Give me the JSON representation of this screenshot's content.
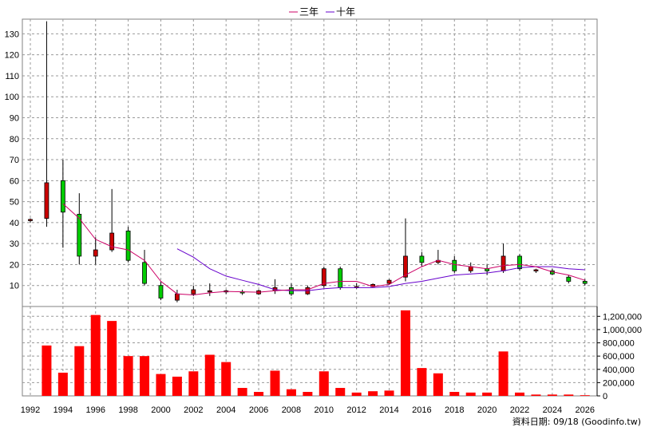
{
  "legend": [
    {
      "label": "三年",
      "color": "#cc0066"
    },
    {
      "label": "十年",
      "color": "#6600cc"
    }
  ],
  "footer": "資料日期: 09/18 (Goodinfo.tw)",
  "colors": {
    "up": "#cc0000",
    "down": "#00cc00",
    "volume": "#ff0000",
    "grid": "#999999"
  },
  "chart_data": {
    "type": "candlestick+bar",
    "x_ticks": [
      "1992",
      "1994",
      "1996",
      "1998",
      "2000",
      "2002",
      "2004",
      "2006",
      "2008",
      "2010",
      "2012",
      "2014",
      "2016",
      "2018",
      "2020",
      "2022",
      "2024",
      "2026"
    ],
    "price_axis": {
      "range": [
        0,
        137
      ],
      "ticks": [
        10,
        20,
        30,
        40,
        50,
        60,
        70,
        80,
        90,
        100,
        110,
        120,
        130
      ]
    },
    "volume_axis": {
      "range": [
        0,
        1300000
      ],
      "ticks": [
        "0",
        "200,000",
        "400,000",
        "600,000",
        "800,000",
        "1,000,000",
        "1,200,000"
      ],
      "tick_values": [
        0,
        200000,
        400000,
        600000,
        800000,
        1000000,
        1200000
      ]
    },
    "candles": [
      {
        "year": 1992,
        "open": 41,
        "close": 41.5,
        "high": 42,
        "low": 40
      },
      {
        "year": 1993,
        "open": 42,
        "close": 59,
        "high": 136,
        "low": 38
      },
      {
        "year": 1994,
        "open": 60,
        "close": 45,
        "high": 70,
        "low": 28
      },
      {
        "year": 1995,
        "open": 44,
        "close": 24,
        "high": 54,
        "low": 20
      },
      {
        "year": 1996,
        "open": 24,
        "close": 27,
        "high": 33,
        "low": 20
      },
      {
        "year": 1997,
        "open": 27,
        "close": 35,
        "high": 56,
        "low": 26
      },
      {
        "year": 1998,
        "open": 36,
        "close": 22,
        "high": 38,
        "low": 21
      },
      {
        "year": 1999,
        "open": 21,
        "close": 11,
        "high": 27,
        "low": 10
      },
      {
        "year": 2000,
        "open": 10,
        "close": 4,
        "high": 12,
        "low": 3
      },
      {
        "year": 2001,
        "open": 3,
        "close": 6,
        "high": 8,
        "low": 2
      },
      {
        "year": 2002,
        "open": 6,
        "close": 8,
        "high": 10,
        "low": 5
      },
      {
        "year": 2003,
        "open": 7,
        "close": 7.5,
        "high": 11,
        "low": 5
      },
      {
        "year": 2004,
        "open": 7,
        "close": 7.5,
        "high": 8,
        "low": 6
      },
      {
        "year": 2005,
        "open": 7,
        "close": 6.5,
        "high": 8,
        "low": 5.5
      },
      {
        "year": 2006,
        "open": 6,
        "close": 7.5,
        "high": 8,
        "low": 5.5
      },
      {
        "year": 2007,
        "open": 7.5,
        "close": 9,
        "high": 13,
        "low": 6
      },
      {
        "year": 2008,
        "open": 9,
        "close": 6,
        "high": 11,
        "low": 5
      },
      {
        "year": 2009,
        "open": 6,
        "close": 9,
        "high": 10,
        "low": 5.5
      },
      {
        "year": 2010,
        "open": 10,
        "close": 18,
        "high": 19,
        "low": 9
      },
      {
        "year": 2011,
        "open": 18,
        "close": 9,
        "high": 19,
        "low": 8
      },
      {
        "year": 2012,
        "open": 9,
        "close": 9.5,
        "high": 11,
        "low": 8.5
      },
      {
        "year": 2013,
        "open": 9.5,
        "close": 10.5,
        "high": 11,
        "low": 9
      },
      {
        "year": 2014,
        "open": 11,
        "close": 12.5,
        "high": 13,
        "low": 10.5
      },
      {
        "year": 2015,
        "open": 14,
        "close": 24,
        "high": 42,
        "low": 12
      },
      {
        "year": 2016,
        "open": 24,
        "close": 21,
        "high": 26,
        "low": 19
      },
      {
        "year": 2017,
        "open": 21,
        "close": 22,
        "high": 27,
        "low": 20
      },
      {
        "year": 2018,
        "open": 22,
        "close": 17,
        "high": 24,
        "low": 16
      },
      {
        "year": 2019,
        "open": 17,
        "close": 19,
        "high": 21,
        "low": 16
      },
      {
        "year": 2020,
        "open": 18,
        "close": 17,
        "high": 20,
        "low": 15
      },
      {
        "year": 2021,
        "open": 17,
        "close": 24,
        "high": 30,
        "low": 16
      },
      {
        "year": 2022,
        "open": 24,
        "close": 18,
        "high": 25,
        "low": 17
      },
      {
        "year": 2023,
        "open": 17,
        "close": 17.5,
        "high": 18,
        "low": 16
      },
      {
        "year": 2024,
        "open": 17,
        "close": 15.5,
        "high": 18,
        "low": 15
      },
      {
        "year": 2025,
        "open": 14,
        "close": 12,
        "high": 15,
        "low": 11
      },
      {
        "year": 2026,
        "open": 12,
        "close": 11,
        "high": 13,
        "low": 10
      }
    ],
    "ma_3yr": {
      "name": "三年",
      "points": [
        [
          1994,
          49
        ],
        [
          1995,
          42
        ],
        [
          1996,
          32
        ],
        [
          1997,
          28.5
        ],
        [
          1998,
          27
        ],
        [
          1999,
          22
        ],
        [
          2000,
          12
        ],
        [
          2001,
          6
        ],
        [
          2002,
          5.5
        ],
        [
          2003,
          6.5
        ],
        [
          2004,
          7.2
        ],
        [
          2005,
          7
        ],
        [
          2006,
          6.8
        ],
        [
          2007,
          7.5
        ],
        [
          2008,
          8
        ],
        [
          2009,
          8
        ],
        [
          2010,
          11
        ],
        [
          2011,
          12
        ],
        [
          2012,
          12
        ],
        [
          2013,
          9.5
        ],
        [
          2014,
          10.5
        ],
        [
          2015,
          15
        ],
        [
          2016,
          19
        ],
        [
          2017,
          22
        ],
        [
          2018,
          20
        ],
        [
          2019,
          19
        ],
        [
          2020,
          18
        ],
        [
          2021,
          19.5
        ],
        [
          2022,
          20
        ],
        [
          2023,
          19
        ],
        [
          2024,
          16.5
        ],
        [
          2025,
          15
        ],
        [
          2026,
          12.5
        ]
      ]
    },
    "ma_10yr": {
      "name": "十年",
      "points": [
        [
          2001,
          27.5
        ],
        [
          2002,
          23.5
        ],
        [
          2003,
          18
        ],
        [
          2004,
          14.5
        ],
        [
          2005,
          12.5
        ],
        [
          2006,
          10.5
        ],
        [
          2007,
          8
        ],
        [
          2008,
          7.5
        ],
        [
          2009,
          7.5
        ],
        [
          2010,
          8.5
        ],
        [
          2011,
          9
        ],
        [
          2012,
          9
        ],
        [
          2013,
          9
        ],
        [
          2014,
          9.5
        ],
        [
          2015,
          11
        ],
        [
          2016,
          12
        ],
        [
          2017,
          13.5
        ],
        [
          2018,
          15
        ],
        [
          2019,
          15.5
        ],
        [
          2020,
          16
        ],
        [
          2021,
          17
        ],
        [
          2022,
          18.5
        ],
        [
          2023,
          19
        ],
        [
          2024,
          19
        ],
        [
          2025,
          18
        ],
        [
          2026,
          17.5
        ]
      ]
    },
    "volume": [
      {
        "year": 1992,
        "value": 0
      },
      {
        "year": 1993,
        "value": 760000
      },
      {
        "year": 1994,
        "value": 350000
      },
      {
        "year": 1995,
        "value": 750000
      },
      {
        "year": 1996,
        "value": 1220000
      },
      {
        "year": 1997,
        "value": 1130000
      },
      {
        "year": 1998,
        "value": 600000
      },
      {
        "year": 1999,
        "value": 600000
      },
      {
        "year": 2000,
        "value": 330000
      },
      {
        "year": 2001,
        "value": 290000
      },
      {
        "year": 2002,
        "value": 370000
      },
      {
        "year": 2003,
        "value": 620000
      },
      {
        "year": 2004,
        "value": 510000
      },
      {
        "year": 2005,
        "value": 120000
      },
      {
        "year": 2006,
        "value": 60000
      },
      {
        "year": 2007,
        "value": 380000
      },
      {
        "year": 2008,
        "value": 100000
      },
      {
        "year": 2009,
        "value": 60000
      },
      {
        "year": 2010,
        "value": 370000
      },
      {
        "year": 2011,
        "value": 120000
      },
      {
        "year": 2012,
        "value": 50000
      },
      {
        "year": 2013,
        "value": 70000
      },
      {
        "year": 2014,
        "value": 80000
      },
      {
        "year": 2015,
        "value": 1290000
      },
      {
        "year": 2016,
        "value": 420000
      },
      {
        "year": 2017,
        "value": 340000
      },
      {
        "year": 2018,
        "value": 60000
      },
      {
        "year": 2019,
        "value": 50000
      },
      {
        "year": 2020,
        "value": 50000
      },
      {
        "year": 2021,
        "value": 670000
      },
      {
        "year": 2022,
        "value": 50000
      },
      {
        "year": 2023,
        "value": 20000
      },
      {
        "year": 2024,
        "value": 20000
      },
      {
        "year": 2025,
        "value": 20000
      },
      {
        "year": 2026,
        "value": 10000
      }
    ]
  }
}
